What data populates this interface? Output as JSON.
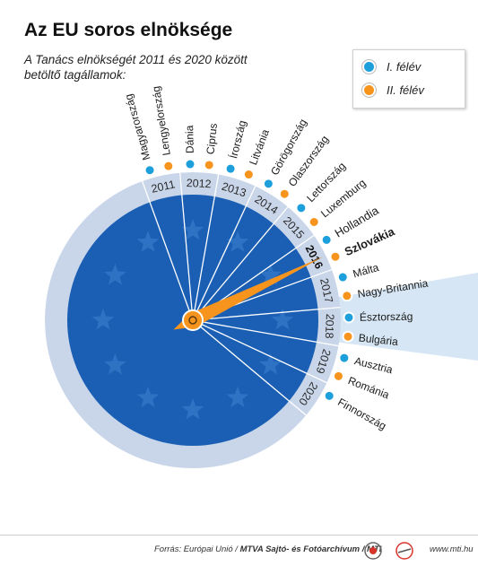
{
  "title": "Az EU soros elnöksége",
  "subtitle": "A Tanács elnökségét 2011 és 2020 között betöltő tagállamok:",
  "legend": [
    {
      "label": "I. félév",
      "color": "#1d9fdc"
    },
    {
      "label": "II. félév",
      "color": "#f7941d"
    }
  ],
  "highlight_year": "2016",
  "years": [
    "2011",
    "2012",
    "2013",
    "2014",
    "2015",
    "2016",
    "2017",
    "2018",
    "2019",
    "2020"
  ],
  "countries": [
    {
      "name": "Magyarország",
      "year": "2011",
      "half": 1
    },
    {
      "name": "Lengyelország",
      "year": "2011",
      "half": 2
    },
    {
      "name": "Dánia",
      "year": "2012",
      "half": 1
    },
    {
      "name": "Ciprus",
      "year": "2012",
      "half": 2
    },
    {
      "name": "Írország",
      "year": "2013",
      "half": 1
    },
    {
      "name": "Litvánia",
      "year": "2013",
      "half": 2
    },
    {
      "name": "Görögország",
      "year": "2014",
      "half": 1
    },
    {
      "name": "Olaszország",
      "year": "2014",
      "half": 2
    },
    {
      "name": "Lettország",
      "year": "2015",
      "half": 1
    },
    {
      "name": "Luxemburg",
      "year": "2015",
      "half": 2
    },
    {
      "name": "Hollandia",
      "year": "2016",
      "half": 1
    },
    {
      "name": "Szlovákia",
      "year": "2016",
      "half": 2
    },
    {
      "name": "Málta",
      "year": "2017",
      "half": 1
    },
    {
      "name": "Nagy-Britannia",
      "year": "2017",
      "half": 2
    },
    {
      "name": "Észtország",
      "year": "2018",
      "half": 1
    },
    {
      "name": "Bulgária",
      "year": "2018",
      "half": 2
    },
    {
      "name": "Ausztria",
      "year": "2019",
      "half": 1
    },
    {
      "name": "Románia",
      "year": "2019",
      "half": 2
    },
    {
      "name": "Finnország",
      "year": "2020",
      "half": 1
    }
  ],
  "colors": {
    "disc": "#1a5fb4",
    "ring": "#c9d6ea",
    "pointer": "#f7941d",
    "first_half": "#1d9fdc",
    "second_half": "#f7941d",
    "highlight_band": "#d6e6f4"
  },
  "footer": {
    "source_prefix": "Forrás: Európai Unió / ",
    "source_bold": "MTVA Sajtó- és Fotóarchívum / MTI",
    "site": "www.mti.hu",
    "logos": [
      "mtva-logo",
      "mti-logo"
    ]
  }
}
